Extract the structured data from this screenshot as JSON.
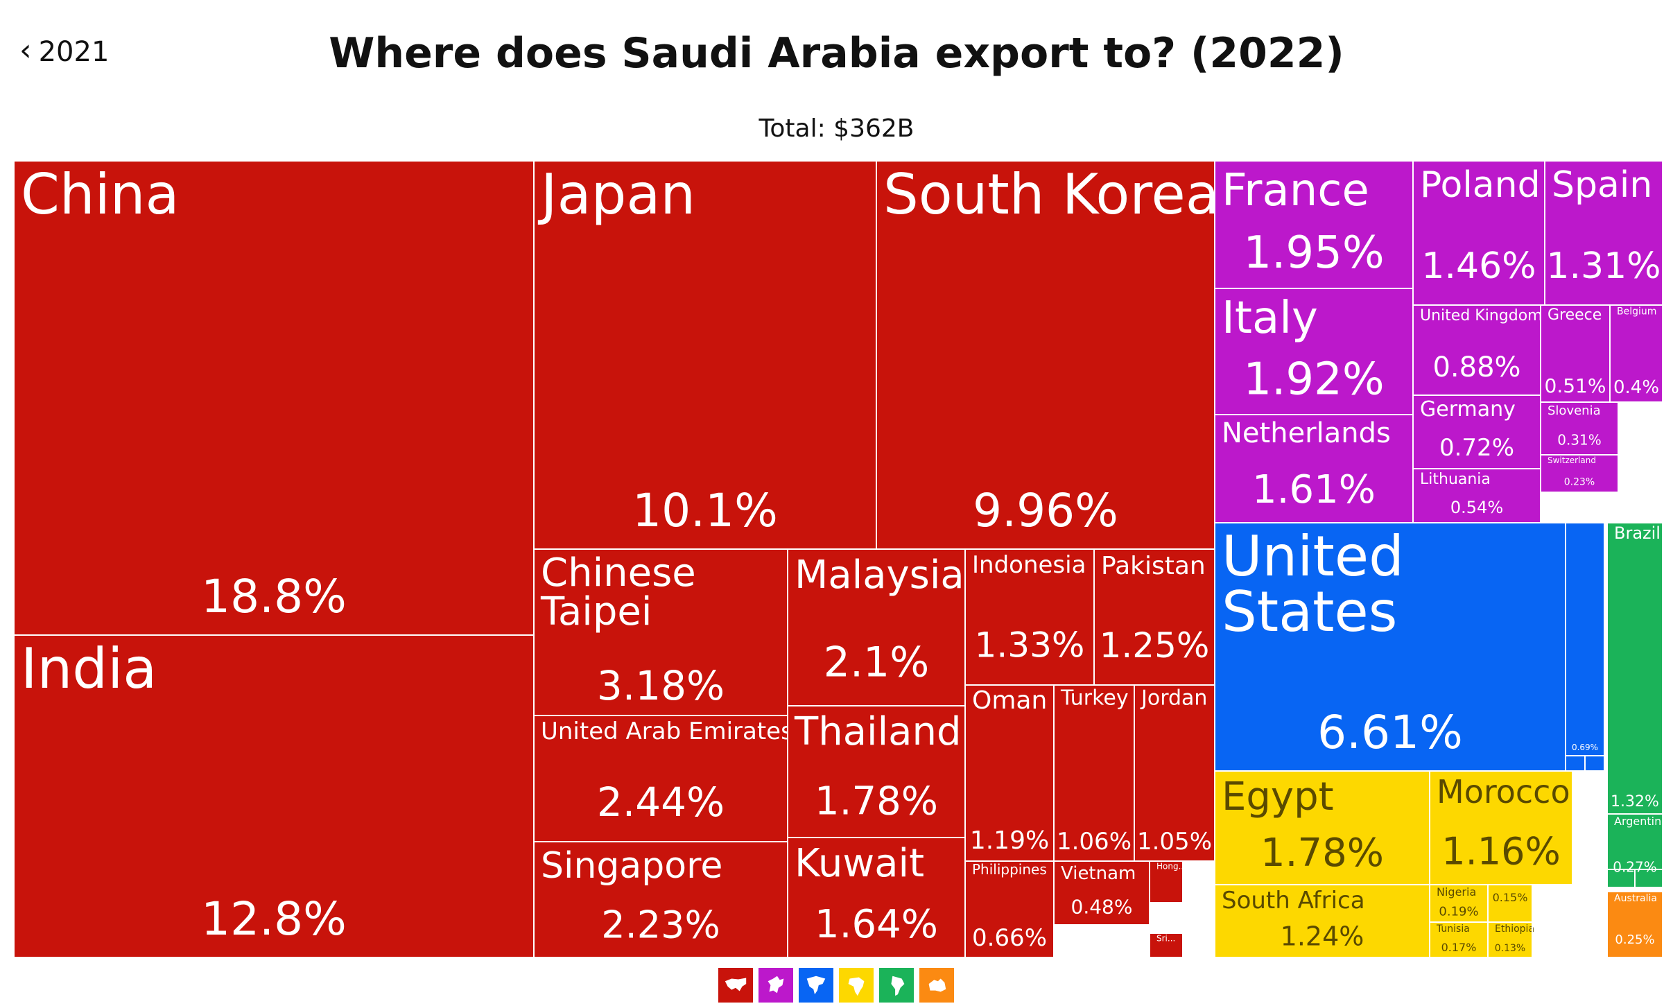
{
  "nav": {
    "back_label": "2021"
  },
  "header": {
    "title": "Where does Saudi Arabia export to? (2022)",
    "total": "Total: $362B"
  },
  "colors": {
    "asia": "#c8130b",
    "europe": "#bc18cb",
    "north_america": "#0865f3",
    "africa": "#fdd800",
    "south_america": "#1bb359",
    "oceania": "#fb8a12"
  },
  "legend": [
    {
      "icon": "asia-icon",
      "color": "#c8130b"
    },
    {
      "icon": "europe-icon",
      "color": "#bc18cb"
    },
    {
      "icon": "north-america-icon",
      "color": "#0865f3"
    },
    {
      "icon": "africa-icon",
      "color": "#fdd800"
    },
    {
      "icon": "south-america-icon",
      "color": "#1bb359"
    },
    {
      "icon": "oceania-icon",
      "color": "#fb8a12"
    }
  ],
  "chart_data": {
    "type": "treemap",
    "title": "Where does Saudi Arabia export to? (2022)",
    "subtitle": "Total: $362B",
    "unit": "% of total exports",
    "groups": [
      {
        "name": "Asia",
        "color": "#c8130b",
        "items": [
          {
            "name": "China",
            "value": 18.8,
            "label": "18.8%"
          },
          {
            "name": "India",
            "value": 12.8,
            "label": "12.8%"
          },
          {
            "name": "Japan",
            "value": 10.1,
            "label": "10.1%"
          },
          {
            "name": "South Korea",
            "value": 9.96,
            "label": "9.96%"
          },
          {
            "name": "Chinese Taipei",
            "value": 3.18,
            "label": "3.18%"
          },
          {
            "name": "United Arab Emirates",
            "value": 2.44,
            "label": "2.44%"
          },
          {
            "name": "Singapore",
            "value": 2.23,
            "label": "2.23%"
          },
          {
            "name": "Malaysia",
            "value": 2.1,
            "label": "2.1%"
          },
          {
            "name": "Thailand",
            "value": 1.78,
            "label": "1.78%"
          },
          {
            "name": "Kuwait",
            "value": 1.64,
            "label": "1.64%"
          },
          {
            "name": "Indonesia",
            "value": 1.33,
            "label": "1.33%"
          },
          {
            "name": "Pakistan",
            "value": 1.25,
            "label": "1.25%"
          },
          {
            "name": "Oman",
            "value": 1.19,
            "label": "1.19%"
          },
          {
            "name": "Turkey",
            "value": 1.06,
            "label": "1.06%"
          },
          {
            "name": "Jordan",
            "value": 1.05,
            "label": "1.05%"
          },
          {
            "name": "Philippines",
            "value": 0.66,
            "label": "0.66%"
          },
          {
            "name": "Vietnam",
            "value": 0.48,
            "label": "0.48%"
          },
          {
            "name": "Hong...",
            "value": null,
            "label": ""
          },
          {
            "name": "Sri...",
            "value": null,
            "label": ""
          }
        ]
      },
      {
        "name": "Europe",
        "color": "#bc18cb",
        "items": [
          {
            "name": "France",
            "value": 1.95,
            "label": "1.95%"
          },
          {
            "name": "Italy",
            "value": 1.92,
            "label": "1.92%"
          },
          {
            "name": "Netherlands",
            "value": 1.61,
            "label": "1.61%"
          },
          {
            "name": "Poland",
            "value": 1.46,
            "label": "1.46%"
          },
          {
            "name": "Spain",
            "value": 1.31,
            "label": "1.31%"
          },
          {
            "name": "United Kingdom",
            "value": 0.88,
            "label": "0.88%"
          },
          {
            "name": "Germany",
            "value": 0.72,
            "label": "0.72%"
          },
          {
            "name": "Lithuania",
            "value": 0.54,
            "label": "0.54%"
          },
          {
            "name": "Greece",
            "value": 0.51,
            "label": "0.51%"
          },
          {
            "name": "Belgium",
            "value": 0.4,
            "label": "0.4%"
          },
          {
            "name": "Slovenia",
            "value": 0.31,
            "label": "0.31%"
          },
          {
            "name": "Switzerland",
            "value": 0.23,
            "label": "0.23%"
          }
        ]
      },
      {
        "name": "North America",
        "color": "#0865f3",
        "items": [
          {
            "name": "United States",
            "value": 6.61,
            "label": "6.61%"
          },
          {
            "name": "",
            "value": 0.69,
            "label": "0.69%"
          }
        ]
      },
      {
        "name": "Africa",
        "color": "#fdd800",
        "items": [
          {
            "name": "Egypt",
            "value": 1.78,
            "label": "1.78%"
          },
          {
            "name": "Morocco",
            "value": 1.16,
            "label": "1.16%"
          },
          {
            "name": "South Africa",
            "value": 1.24,
            "label": "1.24%"
          },
          {
            "name": "Nigeria",
            "value": 0.19,
            "label": "0.19%"
          },
          {
            "name": "",
            "value": 0.15,
            "label": "0.15%"
          },
          {
            "name": "Tunisia",
            "value": 0.17,
            "label": "0.17%"
          },
          {
            "name": "Ethiopia",
            "value": 0.13,
            "label": "0.13%"
          }
        ]
      },
      {
        "name": "South America",
        "color": "#1bb359",
        "items": [
          {
            "name": "Brazil",
            "value": 1.32,
            "label": "1.32%"
          },
          {
            "name": "Argentina",
            "value": 0.27,
            "label": "0.27%"
          }
        ]
      },
      {
        "name": "Oceania",
        "color": "#fb8a12",
        "items": [
          {
            "name": "Australia",
            "value": 0.25,
            "label": "0.25%"
          }
        ]
      }
    ]
  }
}
